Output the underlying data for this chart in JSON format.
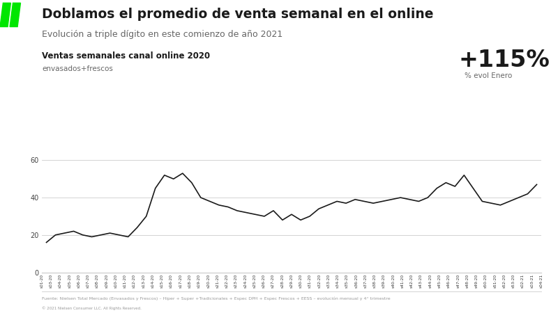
{
  "title": "Doblamos el promedio de venta semanal en el online",
  "subtitle": "Evolución a triple dígito en este comienzo de año 2021",
  "chart_label": "Ventas semanales canal online 2020",
  "chart_sublabel": "envasados+frescos",
  "annotation_pct": "+115%",
  "annotation_sub": "% evol Enero",
  "footer": "Fuente: Nielsen Total Mercado (Envasados y Frescos) – Hiper + Super +Tradicionales + Espec DPH + Espec Frescos + EESS – evolución mensual y 4° trimestre",
  "footer2": "© 2021 Nielsen Consumer LLC. All Rights Reserved.",
  "x_labels": [
    "s01-20",
    "s03-20",
    "s04-20",
    "s05-20",
    "s06-20",
    "s07-20",
    "s08-20",
    "s09-20",
    "s10-20",
    "s11-20",
    "s12-20",
    "s13-20",
    "s14-20",
    "s15-20",
    "s16-20",
    "s17-20",
    "s18-20",
    "s19-20",
    "s20-20",
    "s21-20",
    "s22-20",
    "s23-20",
    "s24-20",
    "s25-20",
    "s26-20",
    "s27-20",
    "s28-20",
    "s29-20",
    "s30-20",
    "s31-20",
    "s32-20",
    "s33-20",
    "s34-20",
    "s35-20",
    "s36-20",
    "s37-20",
    "s38-20",
    "s39-20",
    "s40-20",
    "s41-20",
    "s42-20",
    "s43-20",
    "s44-20",
    "s45-20",
    "s46-20",
    "s47-20",
    "s48-20",
    "s49-20",
    "s50-20",
    "s51-20",
    "s52-20",
    "s53-20",
    "s02-21",
    "s03-21",
    "s04-21"
  ],
  "y_values": [
    16,
    20,
    21,
    22,
    20,
    19,
    20,
    21,
    20,
    19,
    24,
    30,
    45,
    52,
    50,
    53,
    48,
    40,
    38,
    36,
    35,
    33,
    32,
    31,
    30,
    33,
    28,
    31,
    28,
    30,
    34,
    36,
    38,
    37,
    39,
    38,
    37,
    38,
    39,
    40,
    39,
    38,
    40,
    45,
    48,
    46,
    52,
    45,
    38,
    37,
    36,
    38,
    40,
    42,
    47
  ],
  "ylim": [
    0,
    62
  ],
  "yticks": [
    0,
    20,
    40,
    60
  ],
  "bg_color": "#ffffff",
  "line_color": "#1a1a1a",
  "grid_color": "#cccccc",
  "title_color": "#1a1a1a",
  "subtitle_color": "#666666",
  "nielsen_green": "#00e600",
  "cart_bg": "#1a1a1a",
  "cart_fg": "#ffffff",
  "pct_color": "#1a1a1a",
  "subtext_color": "#666666",
  "footer_color": "#999999"
}
